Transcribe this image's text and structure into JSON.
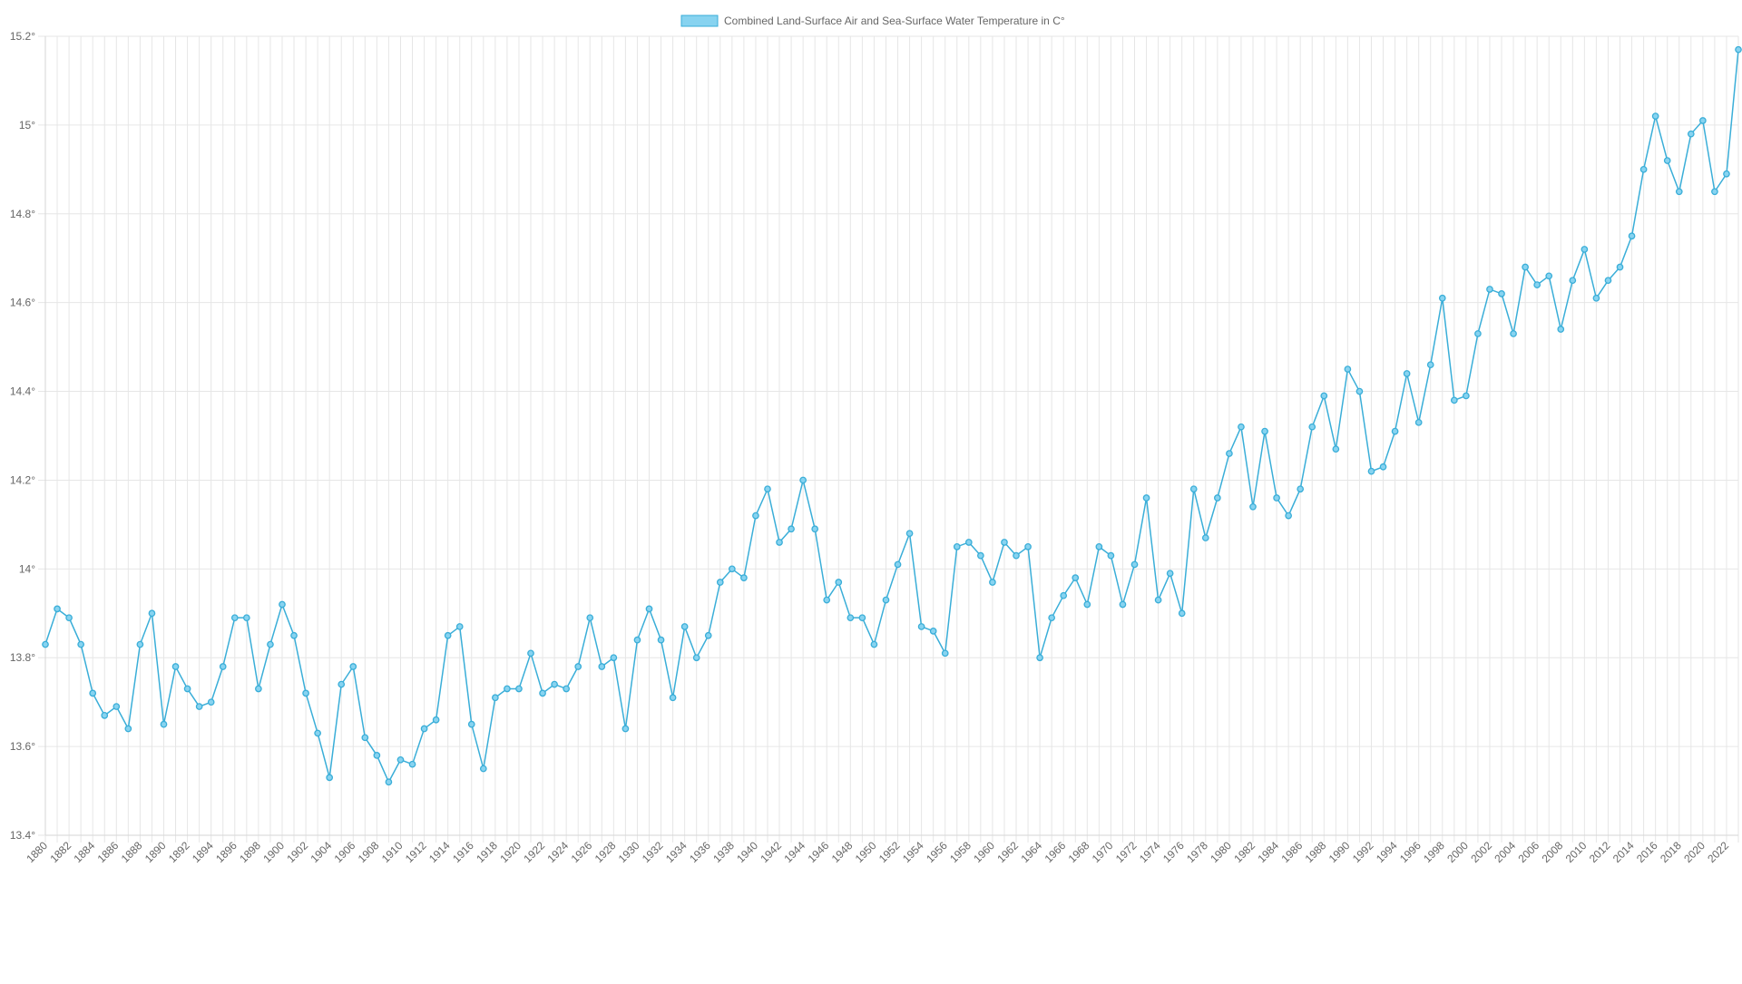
{
  "chart_data": {
    "type": "line",
    "title": "",
    "xlabel": "",
    "ylabel": "",
    "legend_position": "top-center",
    "grid": true,
    "x": [
      1880,
      1881,
      1882,
      1883,
      1884,
      1885,
      1886,
      1887,
      1888,
      1889,
      1890,
      1891,
      1892,
      1893,
      1894,
      1895,
      1896,
      1897,
      1898,
      1899,
      1900,
      1901,
      1902,
      1903,
      1904,
      1905,
      1906,
      1907,
      1908,
      1909,
      1910,
      1911,
      1912,
      1913,
      1914,
      1915,
      1916,
      1917,
      1918,
      1919,
      1920,
      1921,
      1922,
      1923,
      1924,
      1925,
      1926,
      1927,
      1928,
      1929,
      1930,
      1931,
      1932,
      1933,
      1934,
      1935,
      1936,
      1937,
      1938,
      1939,
      1940,
      1941,
      1942,
      1943,
      1944,
      1945,
      1946,
      1947,
      1948,
      1949,
      1950,
      1951,
      1952,
      1953,
      1954,
      1955,
      1956,
      1957,
      1958,
      1959,
      1960,
      1961,
      1962,
      1963,
      1964,
      1965,
      1966,
      1967,
      1968,
      1969,
      1970,
      1971,
      1972,
      1973,
      1974,
      1975,
      1976,
      1977,
      1978,
      1979,
      1980,
      1981,
      1982,
      1983,
      1984,
      1985,
      1986,
      1987,
      1988,
      1989,
      1990,
      1991,
      1992,
      1993,
      1994,
      1995,
      1996,
      1997,
      1998,
      1999,
      2000,
      2001,
      2002,
      2003,
      2004,
      2005,
      2006,
      2007,
      2008,
      2009,
      2010,
      2011,
      2012,
      2013,
      2014,
      2015,
      2016,
      2017,
      2018,
      2019,
      2020,
      2021,
      2022,
      2023
    ],
    "x_tick_labels": [
      "1880",
      "1882",
      "1884",
      "1886",
      "1888",
      "1890",
      "1892",
      "1894",
      "1896",
      "1898",
      "1900",
      "1902",
      "1904",
      "1906",
      "1908",
      "1910",
      "1912",
      "1914",
      "1916",
      "1918",
      "1920",
      "1922",
      "1924",
      "1926",
      "1928",
      "1930",
      "1932",
      "1934",
      "1936",
      "1938",
      "1940",
      "1942",
      "1944",
      "1946",
      "1948",
      "1950",
      "1952",
      "1954",
      "1956",
      "1958",
      "1960",
      "1962",
      "1964",
      "1966",
      "1968",
      "1970",
      "1972",
      "1974",
      "1976",
      "1978",
      "1980",
      "1982",
      "1984",
      "1986",
      "1988",
      "1990",
      "1992",
      "1994",
      "1996",
      "1998",
      "2000",
      "2002",
      "2004",
      "2006",
      "2008",
      "2010",
      "2012",
      "2014",
      "2016",
      "2018",
      "2020",
      "2022"
    ],
    "series": [
      {
        "name": "Combined Land-Surface Air and Sea-Surface Water Temperature in C°",
        "color": "#3aaed8",
        "fill_color": "#87d3f0",
        "values": [
          13.83,
          13.91,
          13.89,
          13.83,
          13.72,
          13.67,
          13.69,
          13.64,
          13.83,
          13.9,
          13.65,
          13.78,
          13.73,
          13.69,
          13.7,
          13.78,
          13.89,
          13.89,
          13.73,
          13.83,
          13.92,
          13.85,
          13.72,
          13.63,
          13.53,
          13.74,
          13.78,
          13.62,
          13.58,
          13.52,
          13.57,
          13.56,
          13.64,
          13.66,
          13.85,
          13.87,
          13.65,
          13.55,
          13.71,
          13.73,
          13.73,
          13.81,
          13.72,
          13.74,
          13.73,
          13.78,
          13.89,
          13.78,
          13.8,
          13.64,
          13.84,
          13.91,
          13.84,
          13.71,
          13.87,
          13.8,
          13.85,
          13.97,
          14.0,
          13.98,
          14.12,
          14.18,
          14.06,
          14.09,
          14.2,
          14.09,
          13.93,
          13.97,
          13.89,
          13.89,
          13.83,
          13.93,
          14.01,
          14.08,
          13.87,
          13.86,
          13.81,
          14.05,
          14.06,
          14.03,
          13.97,
          14.06,
          14.03,
          14.05,
          13.8,
          13.89,
          13.94,
          13.98,
          13.92,
          14.05,
          14.03,
          13.92,
          14.01,
          14.16,
          13.93,
          13.99,
          13.9,
          14.18,
          14.07,
          14.16,
          14.26,
          14.32,
          14.14,
          14.31,
          14.16,
          14.12,
          14.18,
          14.32,
          14.39,
          14.27,
          14.45,
          14.4,
          14.22,
          14.23,
          14.31,
          14.44,
          14.33,
          14.46,
          14.61,
          14.38,
          14.39,
          14.53,
          14.63,
          14.62,
          14.53,
          14.68,
          14.64,
          14.66,
          14.54,
          14.65,
          14.72,
          14.61,
          14.65,
          14.68,
          14.75,
          14.9,
          15.02,
          14.92,
          14.85,
          14.98,
          15.01,
          14.85,
          14.89,
          15.17
        ]
      }
    ],
    "ylim": [
      13.4,
      15.2
    ],
    "y_ticks": [
      13.4,
      13.6,
      13.8,
      14.0,
      14.2,
      14.4,
      14.6,
      14.8,
      15.0,
      15.2
    ],
    "y_tick_labels": [
      "13.4°",
      "13.6°",
      "13.8°",
      "14°",
      "14.2°",
      "14.4°",
      "14.6°",
      "14.8°",
      "15°",
      "15.2°"
    ]
  }
}
